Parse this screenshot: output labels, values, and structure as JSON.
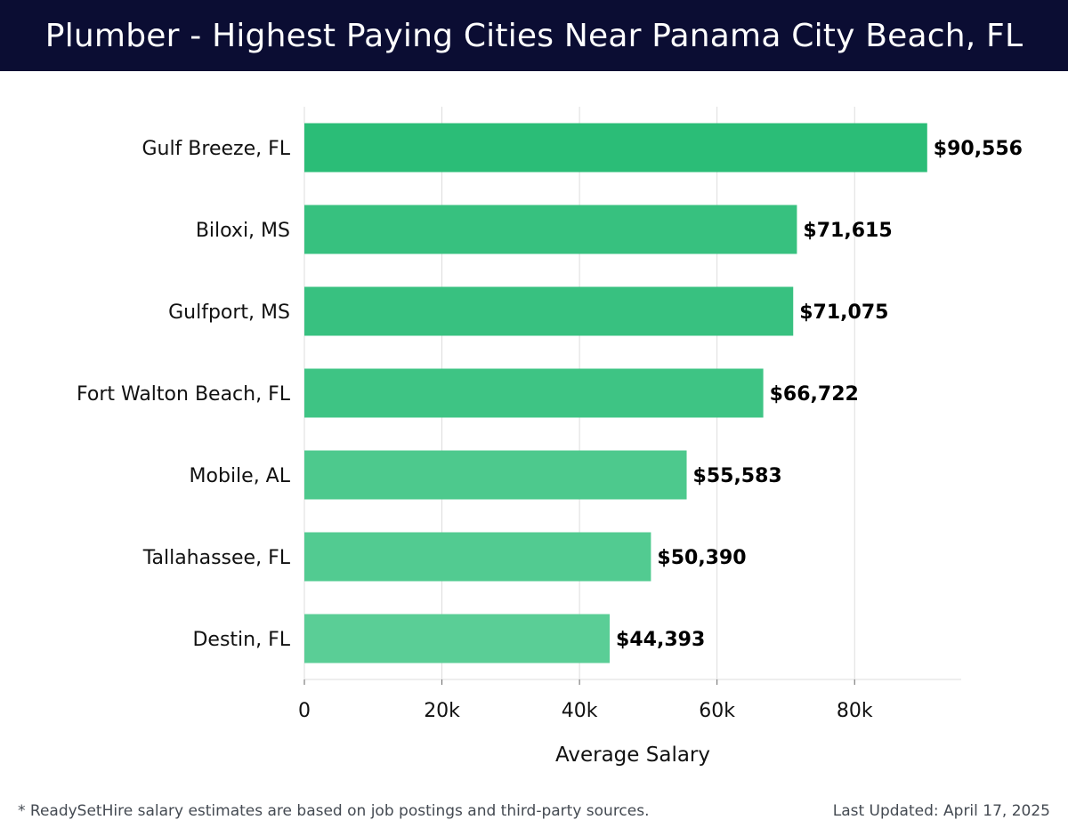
{
  "header": {
    "title": "Plumber - Highest Paying Cities Near Panama City Beach, FL"
  },
  "chart_data": {
    "type": "bar",
    "orientation": "horizontal",
    "categories": [
      "Gulf Breeze, FL",
      "Biloxi, MS",
      "Gulfport, MS",
      "Fort Walton Beach, FL",
      "Mobile, AL",
      "Tallahassee, FL",
      "Destin, FL"
    ],
    "values": [
      90556,
      71615,
      71075,
      66722,
      55583,
      50390,
      44393
    ],
    "value_labels": [
      "$90,556",
      "$71,615",
      "$71,075",
      "$66,722",
      "$55,583",
      "$50,390",
      "$44,393"
    ],
    "bar_colors": [
      "#2bbd77",
      "#37c17f",
      "#38c180",
      "#3ec484",
      "#4dc98d",
      "#52cb91",
      "#5ace96"
    ],
    "xlabel": "Average Salary",
    "ylabel": "",
    "xlim": [
      0,
      95500
    ],
    "xticks": [
      0,
      20000,
      40000,
      60000,
      80000
    ],
    "xtick_labels": [
      "0",
      "20k",
      "40k",
      "60k",
      "80k"
    ],
    "grid": true
  },
  "footer": {
    "note": "* ReadySetHire salary estimates are based on job postings and third-party sources.",
    "updated": "Last Updated: April 17, 2025"
  },
  "colors": {
    "header_bg": "#0b0d33",
    "grid": "#dddddd",
    "text": "#111111"
  }
}
